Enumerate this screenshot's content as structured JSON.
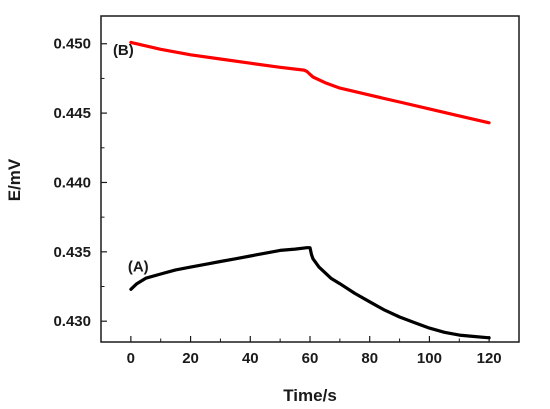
{
  "chart_data": {
    "type": "line",
    "title": "",
    "xlabel": "Time/s",
    "ylabel": "E/mV",
    "xlim": [
      -10,
      130
    ],
    "ylim": [
      0.4285,
      0.452
    ],
    "xticks": [
      0,
      20,
      40,
      60,
      80,
      100,
      120
    ],
    "xtick_labels": [
      "0",
      "20",
      "40",
      "60",
      "80",
      "100",
      "120"
    ],
    "yticks": [
      0.43,
      0.435,
      0.44,
      0.445,
      0.45
    ],
    "ytick_labels": [
      "0.430",
      "0.435",
      "0.440",
      "0.445",
      "0.450"
    ],
    "grid": false,
    "legend": "none",
    "series": [
      {
        "color": "#ff0000",
        "x": [
          0,
          10,
          20,
          30,
          40,
          50,
          58,
          59,
          60,
          61,
          65,
          70,
          80,
          90,
          100,
          110,
          120
        ],
        "y": [
          0.4501,
          0.4496,
          0.4492,
          0.4489,
          0.4486,
          0.4483,
          0.4481,
          0.448,
          0.4478,
          0.4476,
          0.4472,
          0.4468,
          0.4463,
          0.4458,
          0.4453,
          0.4448,
          0.4443
        ]
      },
      {
        "color": "#000000",
        "x": [
          0,
          2,
          5,
          10,
          15,
          20,
          25,
          30,
          35,
          40,
          45,
          50,
          55,
          59,
          60,
          60.5,
          61,
          62,
          63,
          65,
          67,
          70,
          75,
          80,
          85,
          90,
          95,
          100,
          105,
          110,
          115,
          120
        ],
        "y": [
          0.4323,
          0.4327,
          0.4331,
          0.4334,
          0.4337,
          0.4339,
          0.4341,
          0.4343,
          0.4345,
          0.4347,
          0.4349,
          0.4351,
          0.4352,
          0.4353,
          0.4353,
          0.4348,
          0.4345,
          0.4342,
          0.4339,
          0.4335,
          0.4331,
          0.4327,
          0.432,
          0.4314,
          0.4308,
          0.4303,
          0.4299,
          0.4295,
          0.4292,
          0.429,
          0.4289,
          0.4288
        ]
      }
    ],
    "annotations": [
      {
        "text": "(A)",
        "x": -1,
        "y": 0.4336
      },
      {
        "text": "(B)",
        "x": -6,
        "y": 0.4492
      }
    ]
  }
}
